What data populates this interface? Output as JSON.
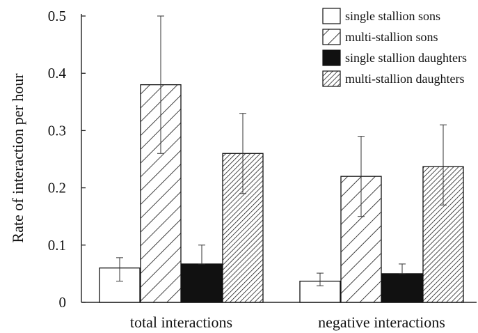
{
  "chart_data": {
    "type": "bar",
    "title": "",
    "xlabel": "",
    "ylabel": "Rate of interaction per hour",
    "ylim": [
      0,
      0.5
    ],
    "yticks": [
      {
        "value": 0,
        "label": "0"
      },
      {
        "value": 0.1,
        "label": "0.1"
      },
      {
        "value": 0.2,
        "label": "0.2"
      },
      {
        "value": 0.3,
        "label": "0.3"
      },
      {
        "value": 0.4,
        "label": "0.4"
      },
      {
        "value": 0.5,
        "label": "0.5"
      }
    ],
    "categories": [
      "total interactions",
      "negative interactions"
    ],
    "series": [
      {
        "name": "single stallion sons",
        "pattern": "empty",
        "values": [
          0.06,
          0.037
        ],
        "err_low": [
          0.037,
          0.029
        ],
        "err_high": [
          0.078,
          0.051
        ]
      },
      {
        "name": "multi-stallion sons",
        "pattern": "sparse-hatch",
        "values": [
          0.38,
          0.22
        ],
        "err_low": [
          0.26,
          0.15
        ],
        "err_high": [
          0.5,
          0.29
        ]
      },
      {
        "name": "single stallion daughters",
        "pattern": "solid",
        "values": [
          0.067,
          0.05
        ],
        "err_low": [
          0.067,
          0.05
        ],
        "err_high": [
          0.1,
          0.067
        ]
      },
      {
        "name": "multi-stallion daughters",
        "pattern": "dense-hatch",
        "values": [
          0.26,
          0.237
        ],
        "err_low": [
          0.19,
          0.17
        ],
        "err_high": [
          0.33,
          0.31
        ]
      }
    ],
    "legend_position": "top-right",
    "grid": false,
    "colors": {
      "ink": "#111111",
      "background": "#ffffff"
    }
  }
}
